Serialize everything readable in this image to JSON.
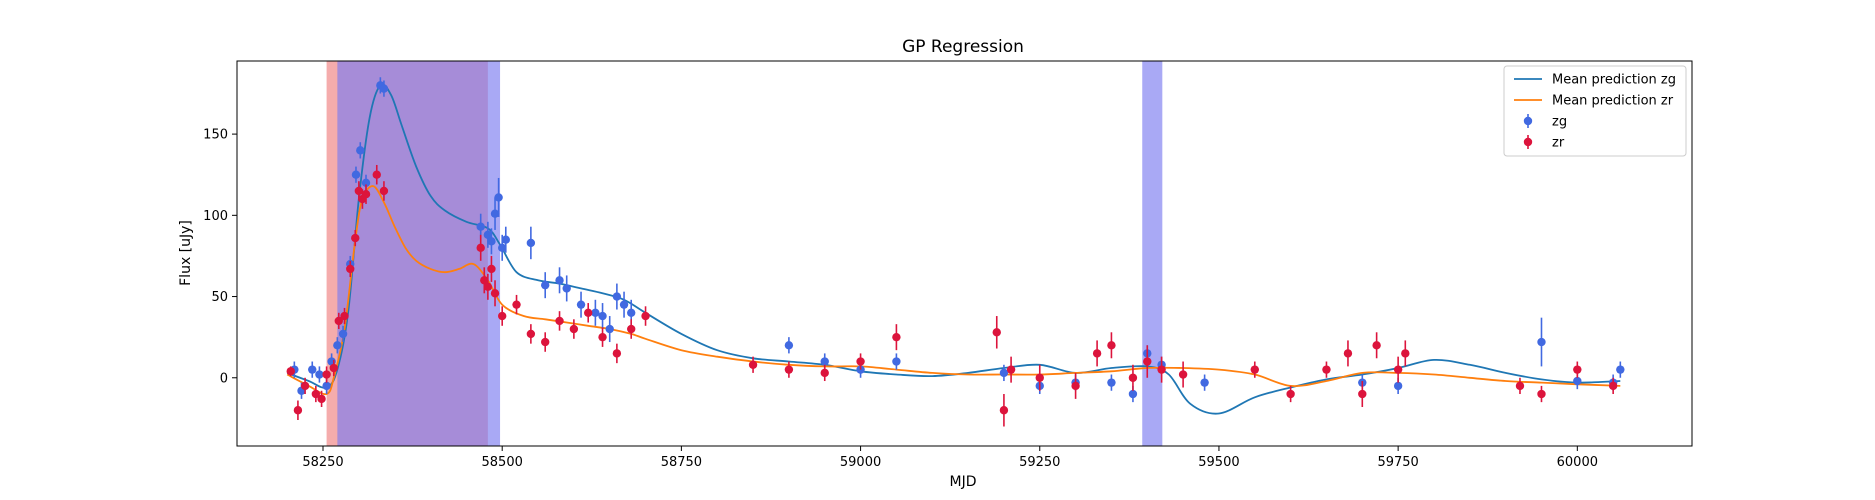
{
  "chart_data": {
    "type": "scatter",
    "title": "GP Regression",
    "xlabel": "MJD",
    "ylabel": "Flux [uJy]",
    "xlim": [
      58130,
      60160
    ],
    "ylim": [
      -42,
      195
    ],
    "xticks": [
      58250,
      58500,
      58750,
      59000,
      59250,
      59500,
      59750,
      60000
    ],
    "yticks": [
      0,
      50,
      100,
      150
    ],
    "legend": {
      "position": "top-right",
      "entries": [
        "Mean prediction zg",
        "Mean prediction zr",
        "zg",
        "zr"
      ]
    },
    "colors": {
      "zg_line": "#1f77b4",
      "zr_line": "#ff7f0e",
      "zg_points": "#4169e1",
      "zr_points": "#dc143c",
      "red_band": "#f08080",
      "blue_band": "#7b7bf0"
    },
    "shaded_regions": [
      {
        "band": "zr",
        "x0": 58255,
        "x1": 58480
      },
      {
        "band": "zg",
        "x0": 58270,
        "x1": 58497
      },
      {
        "band": "zg",
        "x0": 59393,
        "x1": 59421
      }
    ],
    "series": [
      {
        "name": "Mean prediction zg",
        "kind": "line",
        "x": [
          58200,
          58230,
          58255,
          58270,
          58285,
          58300,
          58315,
          58330,
          58345,
          58360,
          58380,
          58400,
          58420,
          58450,
          58480,
          58497,
          58520,
          58550,
          58580,
          58610,
          58640,
          58670,
          58700,
          58750,
          58800,
          58850,
          58900,
          58950,
          59000,
          59050,
          59100,
          59150,
          59200,
          59250,
          59300,
          59350,
          59400,
          59430,
          59460,
          59500,
          59550,
          59600,
          59650,
          59700,
          59750,
          59800,
          59850,
          59900,
          59950,
          60000,
          60060
        ],
        "y": [
          3,
          -2,
          -6,
          5,
          40,
          110,
          160,
          180,
          174,
          155,
          130,
          112,
          103,
          96,
          92,
          82,
          65,
          60,
          58,
          55,
          52,
          48,
          40,
          27,
          17,
          12,
          10,
          8,
          4,
          2,
          1,
          3,
          6,
          8,
          3,
          6,
          7,
          2,
          -16,
          -22,
          -12,
          -6,
          -1,
          2,
          6,
          11,
          8,
          3,
          -1,
          -3,
          -2
        ]
      },
      {
        "name": "Mean prediction zr",
        "kind": "line",
        "x": [
          58200,
          58230,
          58255,
          58265,
          58280,
          58295,
          58305,
          58320,
          58335,
          58350,
          58365,
          58380,
          58400,
          58420,
          58440,
          58460,
          58480,
          58500,
          58530,
          58560,
          58590,
          58620,
          58650,
          58680,
          58700,
          58750,
          58800,
          58850,
          58900,
          58950,
          59000,
          59050,
          59100,
          59150,
          59200,
          59250,
          59300,
          59350,
          59400,
          59450,
          59500,
          59550,
          59600,
          59650,
          59700,
          59750,
          59800,
          59850,
          59900,
          59950,
          60000,
          60060
        ],
        "y": [
          2,
          -5,
          -10,
          0,
          30,
          85,
          110,
          118,
          108,
          93,
          80,
          72,
          67,
          65,
          67,
          70,
          60,
          45,
          38,
          36,
          34,
          32,
          30,
          27,
          24,
          17,
          13,
          10,
          8,
          7,
          7,
          5,
          3,
          2,
          2,
          2,
          3,
          4,
          6,
          6,
          5,
          2,
          -5,
          -2,
          3,
          3,
          2,
          0,
          -2,
          -3,
          -4,
          -5
        ]
      },
      {
        "name": "zg",
        "kind": "points",
        "x": [
          58210,
          58220,
          58235,
          58245,
          58255,
          58262,
          58270,
          58278,
          58288,
          58296,
          58302,
          58310,
          58330,
          58335,
          58470,
          58480,
          58485,
          58490,
          58495,
          58500,
          58505,
          58540,
          58560,
          58580,
          58590,
          58610,
          58630,
          58640,
          58650,
          58660,
          58670,
          58680,
          58900,
          58950,
          59000,
          59050,
          59200,
          59250,
          59300,
          59350,
          59380,
          59400,
          59420,
          59480,
          59700,
          59750,
          59950,
          60000,
          60050,
          60060
        ],
        "y": [
          5,
          -8,
          5,
          2,
          -5,
          10,
          20,
          27,
          70,
          125,
          140,
          120,
          180,
          178,
          93,
          88,
          84,
          101,
          111,
          80,
          85,
          83,
          57,
          60,
          55,
          45,
          40,
          38,
          30,
          50,
          45,
          40,
          20,
          10,
          5,
          10,
          3,
          -5,
          -3,
          -3,
          -10,
          15,
          8,
          -3,
          -3,
          -5,
          22,
          -2,
          -3,
          5
        ],
        "err": [
          5,
          5,
          5,
          5,
          5,
          5,
          5,
          5,
          5,
          5,
          5,
          5,
          5,
          5,
          8,
          8,
          8,
          10,
          12,
          8,
          8,
          10,
          8,
          8,
          8,
          8,
          8,
          8,
          8,
          8,
          8,
          8,
          5,
          5,
          5,
          5,
          5,
          5,
          5,
          5,
          5,
          5,
          5,
          5,
          5,
          5,
          15,
          5,
          5,
          5
        ]
      },
      {
        "name": "zr",
        "kind": "points",
        "x": [
          58205,
          58215,
          58225,
          58240,
          58248,
          58255,
          58265,
          58272,
          58280,
          58288,
          58295,
          58300,
          58305,
          58310,
          58325,
          58335,
          58470,
          58475,
          58480,
          58485,
          58490,
          58500,
          58520,
          58540,
          58560,
          58580,
          58600,
          58620,
          58640,
          58660,
          58680,
          58700,
          58850,
          58900,
          58950,
          59000,
          59050,
          59190,
          59200,
          59210,
          59250,
          59300,
          59330,
          59350,
          59380,
          59400,
          59420,
          59450,
          59550,
          59600,
          59650,
          59680,
          59700,
          59720,
          59750,
          59760,
          59920,
          59950,
          60000,
          60050
        ],
        "y": [
          4,
          -20,
          -5,
          -10,
          -13,
          2,
          6,
          35,
          38,
          67,
          86,
          115,
          110,
          113,
          125,
          115,
          80,
          60,
          56,
          67,
          52,
          38,
          45,
          27,
          22,
          35,
          30,
          40,
          25,
          15,
          30,
          38,
          8,
          5,
          3,
          10,
          25,
          28,
          -20,
          5,
          0,
          -5,
          15,
          20,
          0,
          10,
          5,
          2,
          5,
          -10,
          5,
          15,
          -10,
          20,
          5,
          15,
          -5,
          -10,
          5,
          -5
        ],
        "err": [
          3,
          6,
          5,
          5,
          5,
          5,
          5,
          5,
          5,
          5,
          5,
          6,
          6,
          6,
          6,
          6,
          8,
          8,
          8,
          8,
          8,
          6,
          6,
          6,
          6,
          6,
          6,
          6,
          6,
          6,
          6,
          6,
          5,
          5,
          5,
          5,
          8,
          10,
          10,
          8,
          8,
          8,
          8,
          8,
          8,
          10,
          8,
          8,
          5,
          5,
          5,
          8,
          8,
          8,
          8,
          8,
          5,
          5,
          5,
          5
        ]
      }
    ]
  }
}
